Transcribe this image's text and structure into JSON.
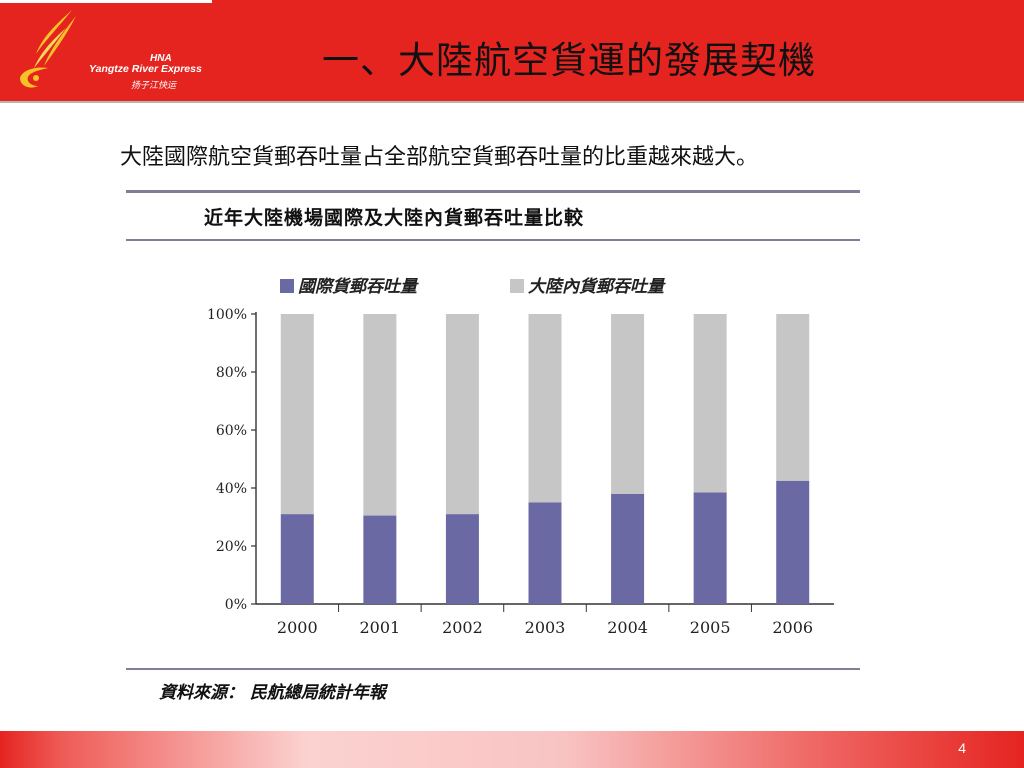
{
  "brand": {
    "hna": "HNA",
    "name_en": "Yangtze River Express",
    "name_cn": "扬子江快运",
    "color_red": "#e52420"
  },
  "slide": {
    "title": "一、大陸航空貨運的發展契機",
    "subtitle": "大陸國際航空貨郵吞吐量占全部航空貨郵吞吐量的比重越來越大。",
    "page_number": "4"
  },
  "figure": {
    "source": "資料來源：  民航總局統計年報"
  },
  "chart_data": {
    "type": "bar",
    "stacked": true,
    "percent": true,
    "title": "近年大陸機場國際及大陸內貨郵吞吐量比較",
    "categories": [
      "2000",
      "2001",
      "2002",
      "2003",
      "2004",
      "2005",
      "2006"
    ],
    "series": [
      {
        "name": "國際貨郵吞吐量",
        "color": "#6b69a3",
        "values": [
          31,
          30.5,
          31,
          35,
          38,
          38.5,
          42.5
        ]
      },
      {
        "name": "大陸內貨郵吞吐量",
        "color": "#c6c6c6",
        "values": [
          69,
          69.5,
          69,
          65,
          62,
          61.5,
          57.5
        ]
      }
    ],
    "yticks": [
      "0%",
      "20%",
      "40%",
      "60%",
      "80%",
      "100%"
    ],
    "ylim": [
      0,
      100
    ],
    "grid": false,
    "legend": "top"
  }
}
